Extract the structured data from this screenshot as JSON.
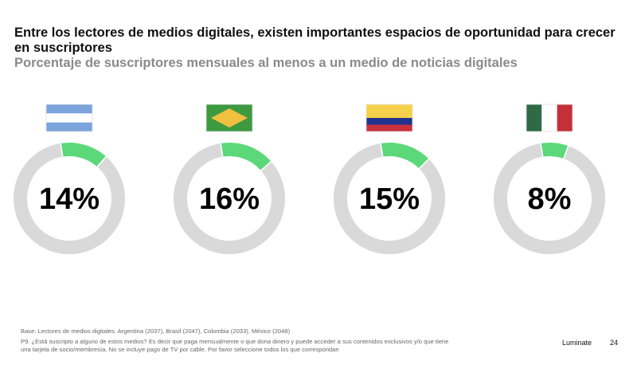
{
  "header": {
    "title": "Entre los lectores de medios digitales, existen importantes espacios de oportunidad para crecer en suscriptores",
    "subtitle": "Porcentaje de suscriptores mensuales al menos a un medio de noticias digitales"
  },
  "chart_data": {
    "type": "pie",
    "variant": "donut",
    "title": "Porcentaje de suscriptores mensuales al menos a un medio de noticias digitales",
    "categories": [
      "Argentina",
      "Brasil",
      "Colombia",
      "México"
    ],
    "values": [
      14,
      16,
      15,
      8
    ],
    "labels": [
      "14%",
      "16%",
      "15%",
      "8%"
    ],
    "unit": "%",
    "total": 100,
    "flags": [
      "argentina-flag",
      "brazil-flag",
      "colombia-flag",
      "mexico-flag"
    ],
    "colors": {
      "highlight": "#5cd87a",
      "remainder": "#d9d9d9",
      "separator": "#ffffff",
      "label": "#000000"
    }
  },
  "flag_colors": {
    "argentina": [
      "#7ba3dc",
      "#ffffff",
      "#7ba3dc"
    ],
    "brazil": {
      "field": "#3d9a3f",
      "diamond": "#f0c040"
    },
    "colombia": [
      "#f5d04a",
      "#22338f",
      "#c8303a"
    ],
    "mexico": [
      "#2e6b45",
      "#ffffff",
      "#c4303a"
    ]
  },
  "footer": {
    "base": "Base: Lectores de medios digitales. Argentina (2037), Brasil (2047), Colombia (2033), México (2048)",
    "question": "P9. ¿Está suscripto a alguno de estos medios? Es decir que paga mensualmente o que dona dinero y puede acceder a sus contenidos exclusivos y/o que tiene una tarjeta de socio/membresía. No se incluye pago de TV por cable.  Por favor seleccione todos los que correspondan",
    "brand": "Luminate",
    "page_number": "24"
  }
}
